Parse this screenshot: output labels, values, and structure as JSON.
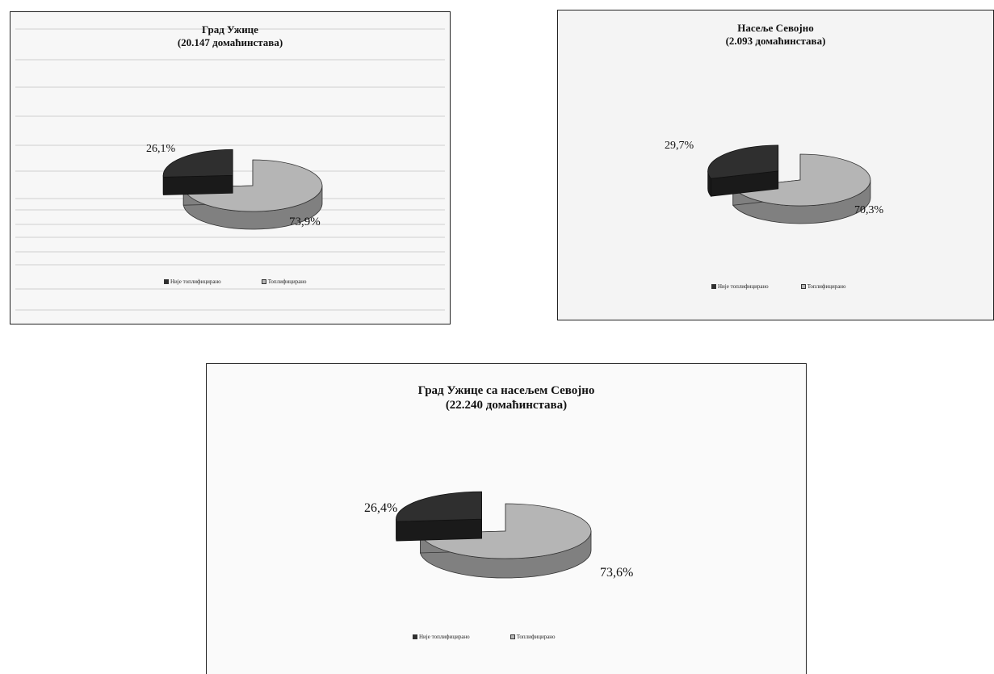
{
  "colors": {
    "not_connected": "#2f2f2f",
    "not_connected_side": "#1a1a1a",
    "connected": "#b5b5b5",
    "connected_side": "#808080"
  },
  "chart_data": [
    {
      "type": "pie",
      "style": "3d-exploded",
      "title_line1": "Град Ужице",
      "title_line2": "(20.147 домаћинстава)",
      "slices": [
        {
          "legend": "Није топлифицирано",
          "value": 26.1,
          "label": "26,1%",
          "color": "#2f2f2f"
        },
        {
          "legend": "Топлифицирано",
          "value": 73.9,
          "label": "73,9%",
          "color": "#b5b5b5"
        }
      ],
      "legend_placement": "bottom"
    },
    {
      "type": "pie",
      "style": "3d-exploded",
      "title_line1": "Насеље Севојно",
      "title_line2": "(2.093 домаћинстава)",
      "slices": [
        {
          "legend": "Није топлифицирано",
          "value": 29.7,
          "label": "29,7%",
          "color": "#2f2f2f"
        },
        {
          "legend": "Топлифицирано",
          "value": 70.3,
          "label": "70,3%",
          "color": "#b5b5b5"
        }
      ],
      "legend_placement": "bottom"
    },
    {
      "type": "pie",
      "style": "3d-exploded",
      "title_line1": "Град Ужице са насељем Севојно",
      "title_line2": "(22.240 домаћинстава)",
      "slices": [
        {
          "legend": "Није топлифицирано",
          "value": 26.4,
          "label": "26,4%",
          "color": "#2f2f2f"
        },
        {
          "legend": "Топлифицирано",
          "value": 73.6,
          "label": "73,6%",
          "color": "#b5b5b5"
        }
      ],
      "legend_placement": "bottom"
    }
  ]
}
